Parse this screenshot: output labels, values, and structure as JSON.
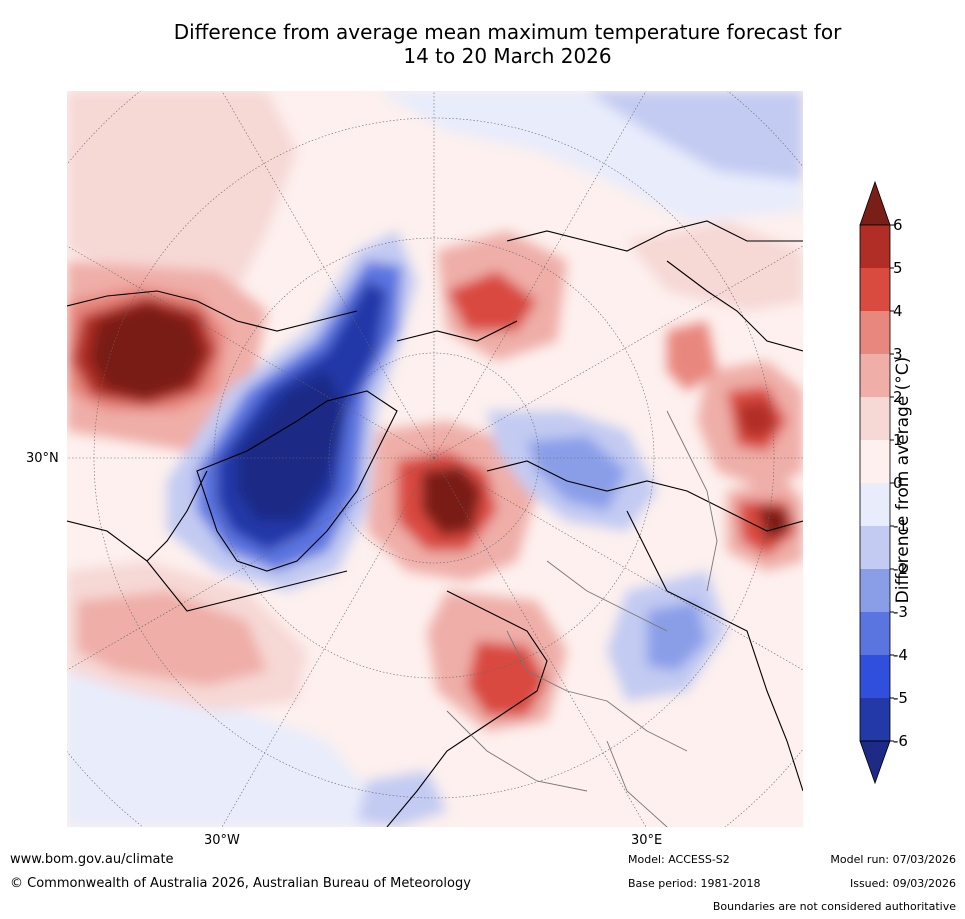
{
  "title": {
    "line1": "Difference from average mean maximum temperature forecast for",
    "line2": "14 to 20 March 2026"
  },
  "map": {
    "lon_labels": [
      "30°W",
      "30°E"
    ],
    "lat_labels": [
      "30°N"
    ]
  },
  "colorbar": {
    "title": "Difference from average (°C)",
    "ticks": [
      "6",
      "5",
      "4",
      "3",
      "2",
      "1",
      "0",
      "-1",
      "-2",
      "-3",
      "-4",
      "-5",
      "-6"
    ],
    "colors": [
      "#b12e26",
      "#d94a3f",
      "#e8877e",
      "#efaea8",
      "#f6d8d5",
      "#fdf0ee",
      "#e8ecfb",
      "#c3cbf2",
      "#8a9ee8",
      "#5b75e0",
      "#2f4fdc",
      "#2339a8"
    ],
    "over_color": "#7a1e18",
    "under_color": "#1d2a86"
  },
  "footer": {
    "url": "www.bom.gov.au/climate",
    "copyright": "© Commonwealth of Australia 2026, Australian Bureau of Meteorology",
    "model": "Model: ACCESS-S2",
    "base_period": "Base period: 1981-2018",
    "model_run": "Model run: 07/03/2026",
    "issued": "Issued: 09/03/2026",
    "disclaimer": "Boundaries are not considered authoritative"
  }
}
